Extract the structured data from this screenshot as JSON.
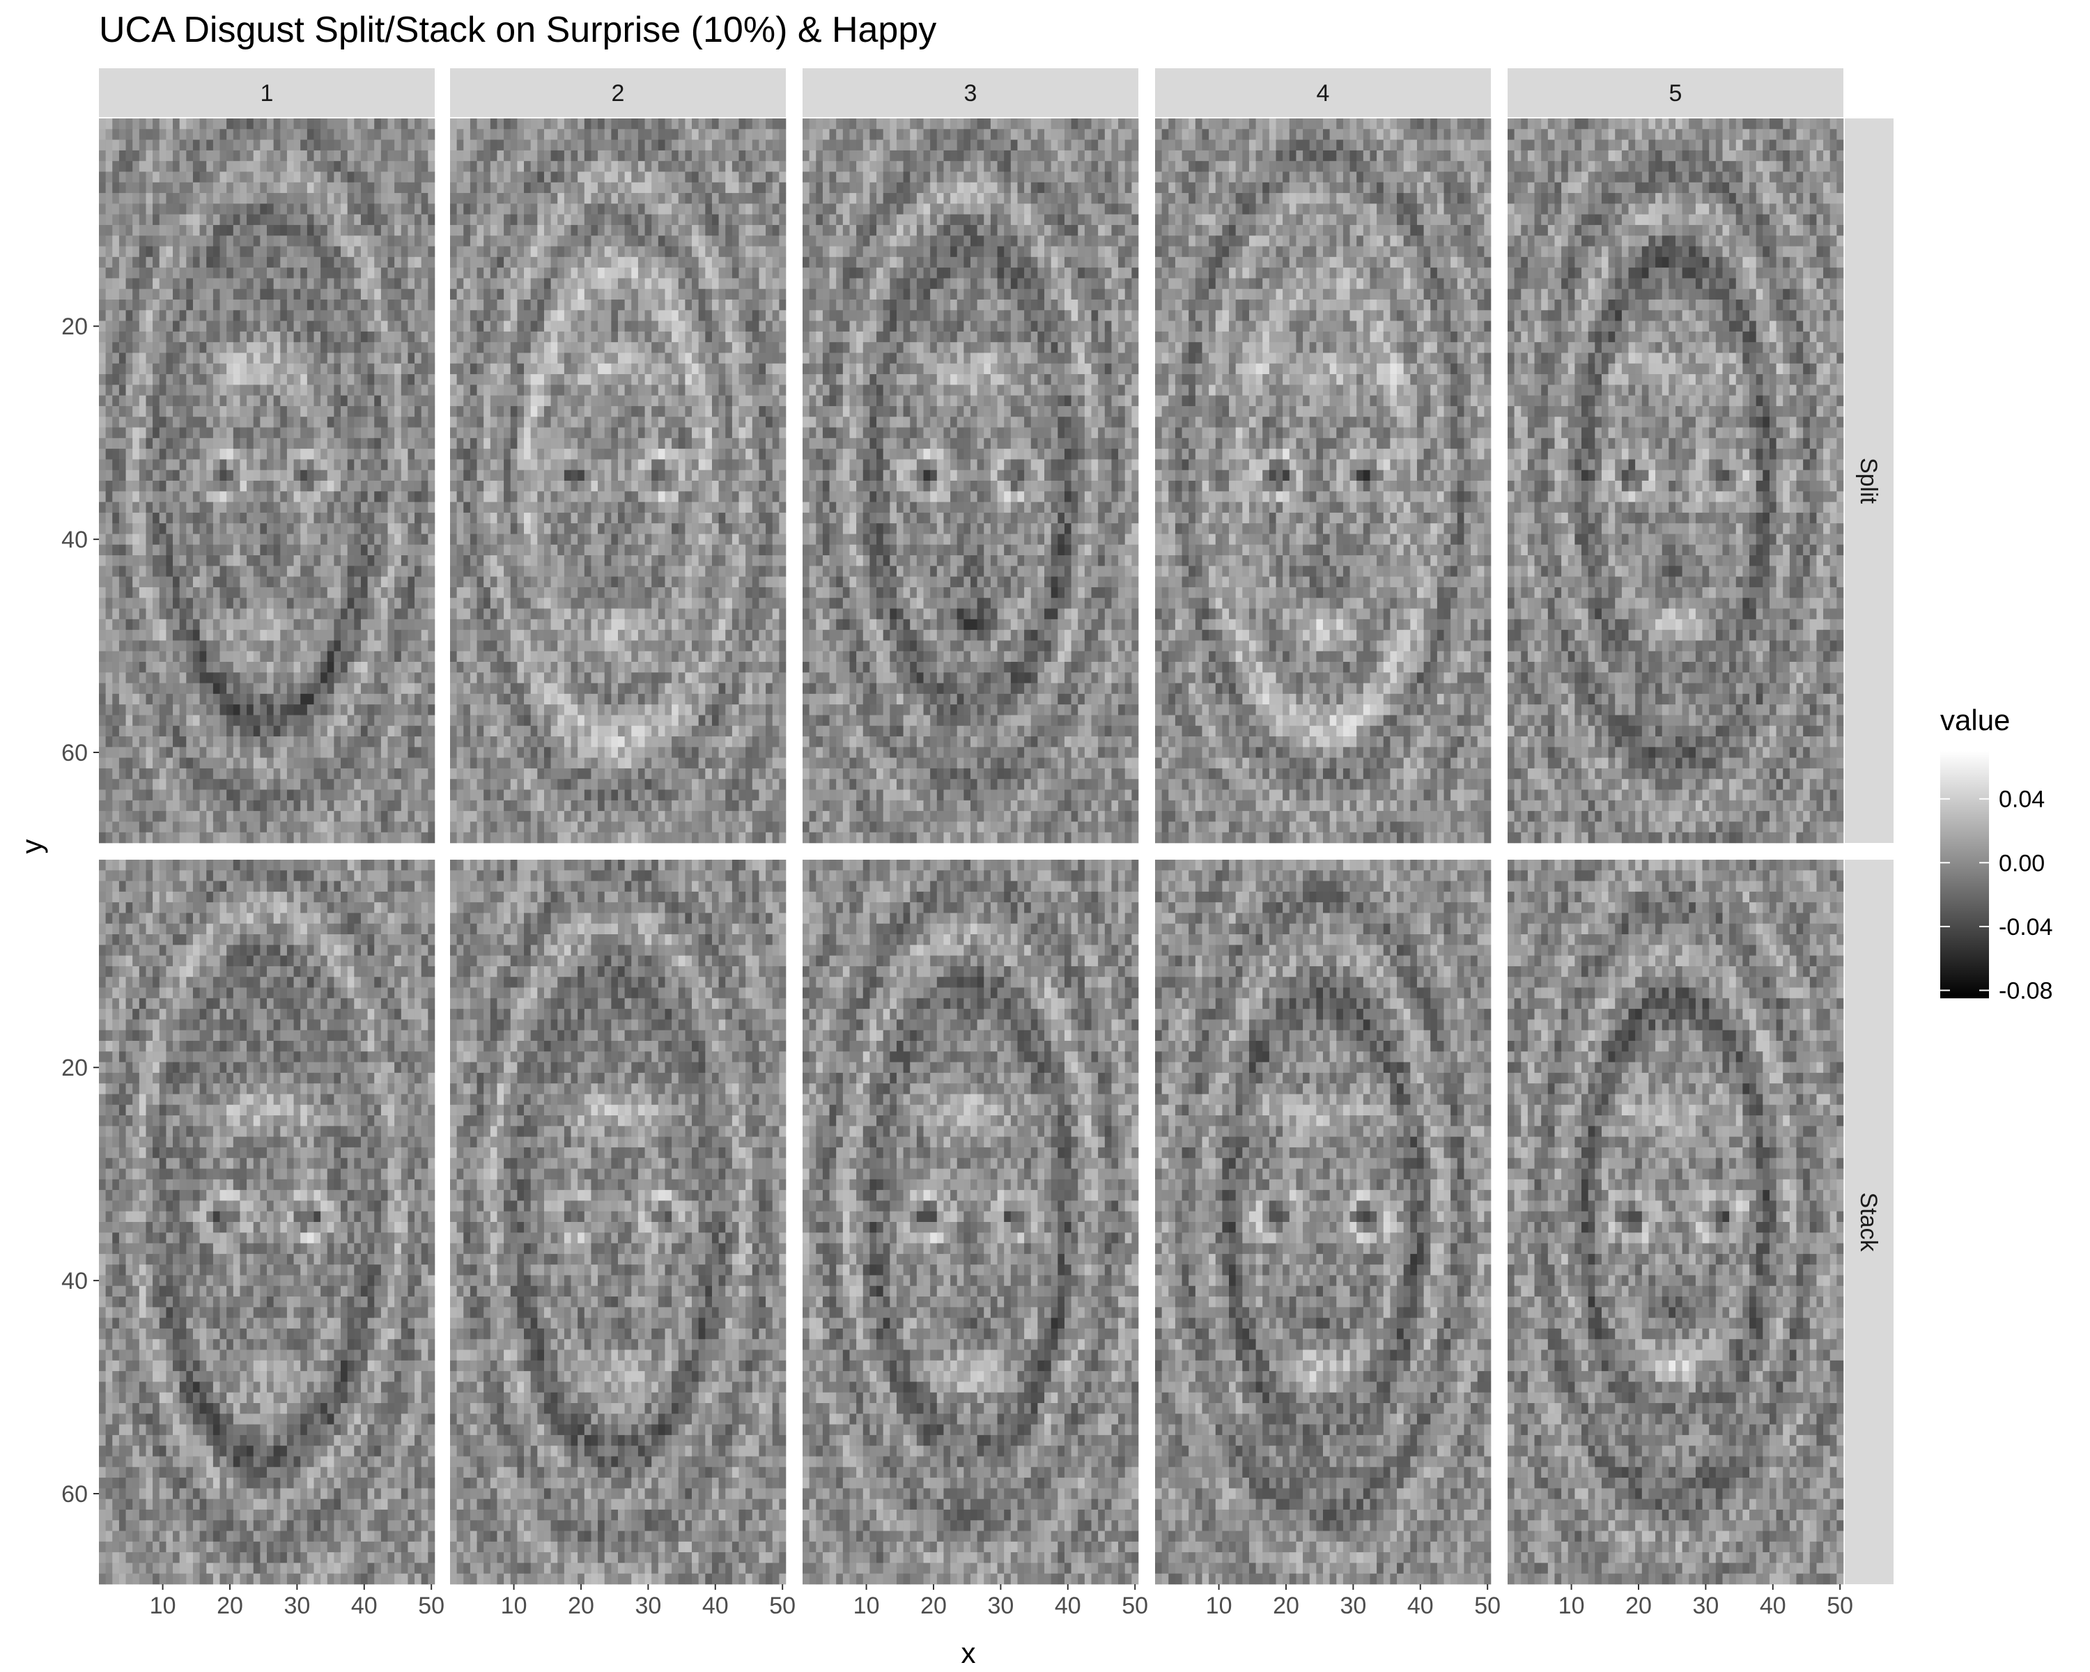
{
  "chart_data": {
    "type": "heatmap",
    "title": "UCA Disgust Split/Stack on Surprise (10%) & Happy",
    "xlabel": "x",
    "ylabel": "y",
    "facet_columns": [
      "1",
      "2",
      "3",
      "4",
      "5"
    ],
    "facet_rows": [
      "Split",
      "Stack"
    ],
    "x_ticks": [
      10,
      20,
      30,
      40,
      50
    ],
    "y_ticks": [
      20,
      40,
      60
    ],
    "xlim": [
      0.5,
      50.5
    ],
    "ylim": [
      68.5,
      0.5
    ],
    "y_reversed": true,
    "grid_size": {
      "nx": 50,
      "ny": 68
    },
    "legend": {
      "title": "value",
      "position": "right",
      "breaks": [
        0.04,
        0.0,
        -0.04,
        -0.08
      ],
      "labels": [
        "0.04",
        "0.00",
        "-0.04",
        "-0.08"
      ],
      "range": [
        -0.085,
        0.07
      ],
      "low_color": "#000000",
      "high_color": "#ffffff"
    },
    "colors": {
      "strip_background": "#d9d9d9",
      "panel_background": "#808080"
    }
  }
}
